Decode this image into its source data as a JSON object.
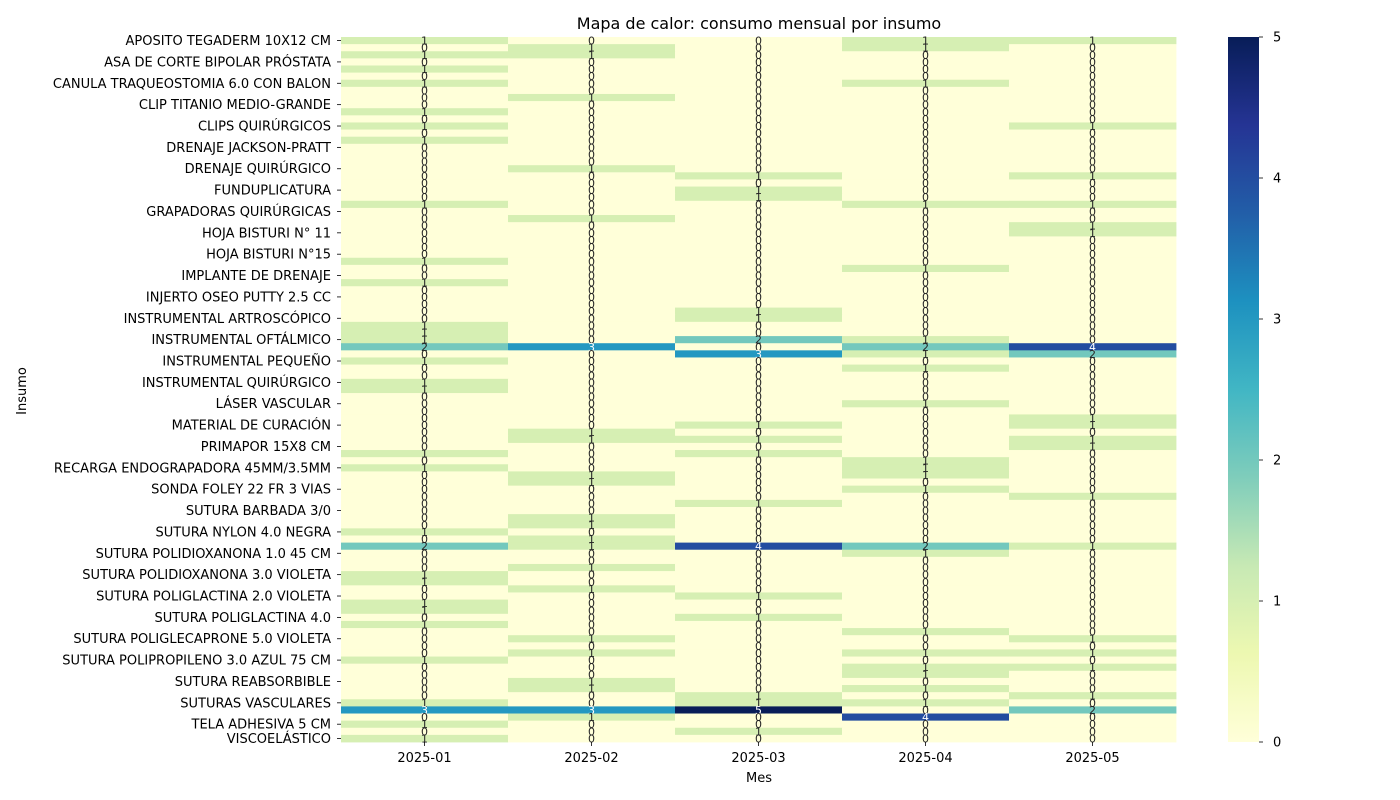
{
  "chart_data": {
    "type": "heatmap",
    "title": "Mapa de calor: consumo mensual por insumo",
    "xlabel": "Mes",
    "ylabel": "Insumo",
    "x": [
      "2025-01",
      "2025-02",
      "2025-03",
      "2025-04",
      "2025-05"
    ],
    "row_count": 99,
    "y_tick_labels": [
      "APOSITO TEGADERM 10X12 CM",
      "ASA DE CORTE BIPOLAR PRÓSTATA",
      "CANULA TRAQUEOSTOMIA 6.0 CON BALON",
      "CLIP TITANIO MEDIO-GRANDE",
      "CLIPS QUIRÚRGICOS",
      "DRENAJE JACKSON-PRATT",
      "DRENAJE QUIRÚRGICO",
      "FUNDUPLICATURA",
      "GRAPADORAS QUIRÚRGICAS",
      "HOJA BISTURI N° 11",
      "HOJA BISTURI N°15",
      "IMPLANTE DE DRENAJE",
      "INJERTO OSEO PUTTY 2.5 CC",
      "INSTRUMENTAL ARTROSCÓPICO",
      "INSTRUMENTAL OFTÁLMICO",
      "INSTRUMENTAL PEQUEÑO",
      "INSTRUMENTAL QUIRÚRGICO",
      "LÁSER VASCULAR",
      "MATERIAL DE CURACIÓN",
      "PRIMAPOR 15X8 CM",
      "RECARGA ENDOGRAPADORA 45MM/3.5MM",
      "SONDA FOLEY 22 FR 3 VIAS",
      "SUTURA BARBADA 3/0",
      "SUTURA NYLON 4.0 NEGRA",
      "SUTURA POLIDIOXANONA 1.0 45 CM",
      "SUTURA POLIDIOXANONA 3.0 VIOLETA",
      "SUTURA POLIGLACTINA 2.0 VIOLETA",
      "SUTURA POLIGLACTINA 4.0",
      "SUTURA POLIGLECAPRONE 5.0 VIOLETA",
      "SUTURA POLIPROPILENO 3.0 AZUL 75 CM",
      "SUTURA REABSORBIBLE",
      "SUTURAS VASCULARES",
      "TELA ADHESIVA 5 CM",
      "VISCOELÁSTICO"
    ],
    "values": [
      [
        1,
        0,
        0,
        1,
        1
      ],
      [
        0,
        1,
        0,
        1,
        0
      ],
      [
        1,
        1,
        0,
        0,
        0
      ],
      [
        0,
        0,
        0,
        0,
        0
      ],
      [
        1,
        0,
        0,
        0,
        0
      ],
      [
        0,
        0,
        0,
        0,
        0
      ],
      [
        1,
        0,
        0,
        1,
        0
      ],
      [
        0,
        0,
        0,
        0,
        0
      ],
      [
        0,
        1,
        0,
        0,
        0
      ],
      [
        0,
        0,
        0,
        0,
        0
      ],
      [
        1,
        0,
        0,
        0,
        0
      ],
      [
        0,
        0,
        0,
        0,
        0
      ],
      [
        1,
        0,
        0,
        0,
        1
      ],
      [
        0,
        0,
        0,
        0,
        0
      ],
      [
        1,
        0,
        0,
        0,
        0
      ],
      [
        0,
        0,
        0,
        0,
        0
      ],
      [
        0,
        0,
        0,
        0,
        0
      ],
      [
        0,
        0,
        0,
        0,
        0
      ],
      [
        0,
        1,
        0,
        0,
        0
      ],
      [
        0,
        0,
        1,
        0,
        1
      ],
      [
        0,
        0,
        0,
        0,
        0
      ],
      [
        0,
        0,
        1,
        0,
        0
      ],
      [
        0,
        0,
        1,
        0,
        0
      ],
      [
        1,
        0,
        0,
        1,
        1
      ],
      [
        0,
        0,
        0,
        0,
        0
      ],
      [
        0,
        1,
        0,
        0,
        0
      ],
      [
        0,
        0,
        0,
        0,
        1
      ],
      [
        0,
        0,
        0,
        0,
        1
      ],
      [
        0,
        0,
        0,
        0,
        0
      ],
      [
        0,
        0,
        0,
        0,
        0
      ],
      [
        0,
        0,
        0,
        0,
        0
      ],
      [
        1,
        0,
        0,
        0,
        0
      ],
      [
        0,
        0,
        0,
        1,
        0
      ],
      [
        0,
        0,
        0,
        0,
        0
      ],
      [
        1,
        0,
        0,
        0,
        0
      ],
      [
        0,
        0,
        0,
        0,
        0
      ],
      [
        0,
        0,
        0,
        0,
        0
      ],
      [
        0,
        0,
        0,
        0,
        0
      ],
      [
        0,
        0,
        1,
        0,
        0
      ],
      [
        0,
        0,
        1,
        0,
        0
      ],
      [
        1,
        0,
        0,
        0,
        0
      ],
      [
        1,
        0,
        0,
        0,
        0
      ],
      [
        1,
        0,
        2,
        1,
        0
      ],
      [
        2,
        3,
        0,
        2,
        4
      ],
      [
        0,
        0,
        3,
        1,
        2
      ],
      [
        1,
        0,
        0,
        0,
        0
      ],
      [
        0,
        0,
        0,
        1,
        0
      ],
      [
        0,
        0,
        0,
        0,
        0
      ],
      [
        1,
        0,
        0,
        0,
        0
      ],
      [
        1,
        0,
        0,
        0,
        0
      ],
      [
        0,
        0,
        0,
        0,
        0
      ],
      [
        0,
        0,
        0,
        1,
        0
      ],
      [
        0,
        0,
        0,
        0,
        0
      ],
      [
        0,
        0,
        0,
        0,
        1
      ],
      [
        0,
        0,
        1,
        0,
        1
      ],
      [
        0,
        1,
        0,
        0,
        0
      ],
      [
        0,
        1,
        1,
        0,
        1
      ],
      [
        0,
        0,
        0,
        0,
        1
      ],
      [
        1,
        0,
        1,
        0,
        0
      ],
      [
        0,
        0,
        0,
        1,
        0
      ],
      [
        1,
        0,
        0,
        1,
        0
      ],
      [
        0,
        1,
        0,
        1,
        0
      ],
      [
        0,
        1,
        0,
        0,
        0
      ],
      [
        0,
        0,
        0,
        1,
        0
      ],
      [
        0,
        0,
        0,
        0,
        1
      ],
      [
        0,
        0,
        1,
        0,
        0
      ],
      [
        0,
        0,
        0,
        0,
        0
      ],
      [
        0,
        1,
        0,
        0,
        0
      ],
      [
        0,
        1,
        0,
        0,
        0
      ],
      [
        1,
        0,
        0,
        0,
        0
      ],
      [
        0,
        1,
        0,
        0,
        0
      ],
      [
        2,
        1,
        4,
        2,
        1
      ],
      [
        0,
        0,
        0,
        1,
        0
      ],
      [
        0,
        0,
        0,
        0,
        0
      ],
      [
        0,
        1,
        0,
        0,
        0
      ],
      [
        1,
        0,
        0,
        0,
        0
      ],
      [
        1,
        0,
        0,
        0,
        0
      ],
      [
        0,
        1,
        0,
        0,
        0
      ],
      [
        0,
        0,
        1,
        0,
        0
      ],
      [
        1,
        0,
        0,
        0,
        0
      ],
      [
        1,
        0,
        0,
        0,
        0
      ],
      [
        0,
        0,
        1,
        0,
        0
      ],
      [
        1,
        0,
        0,
        0,
        0
      ],
      [
        0,
        0,
        0,
        1,
        0
      ],
      [
        0,
        1,
        0,
        0,
        1
      ],
      [
        0,
        0,
        0,
        0,
        0
      ],
      [
        0,
        1,
        0,
        1,
        1
      ],
      [
        1,
        0,
        0,
        0,
        0
      ],
      [
        0,
        0,
        0,
        1,
        1
      ],
      [
        0,
        0,
        0,
        1,
        0
      ],
      [
        0,
        1,
        0,
        0,
        0
      ],
      [
        0,
        1,
        0,
        1,
        0
      ],
      [
        0,
        0,
        1,
        0,
        1
      ],
      [
        1,
        0,
        1,
        1,
        0
      ],
      [
        3,
        3,
        5,
        0,
        2
      ],
      [
        0,
        1,
        0,
        4,
        0
      ],
      [
        1,
        0,
        0,
        0,
        0
      ],
      [
        0,
        0,
        1,
        0,
        0
      ],
      [
        1,
        0,
        0,
        0,
        0
      ]
    ],
    "zlim": [
      0,
      5
    ],
    "colorbar_ticks": [
      0,
      1,
      2,
      3,
      4,
      5
    ],
    "colormap": [
      "#ffffd9",
      "#edf8b1",
      "#c7e9b4",
      "#7fcdbb",
      "#41b6c4",
      "#1d91c0",
      "#225ea8",
      "#253494",
      "#081d58"
    ],
    "grid": false,
    "legend": "colorbar-right"
  }
}
